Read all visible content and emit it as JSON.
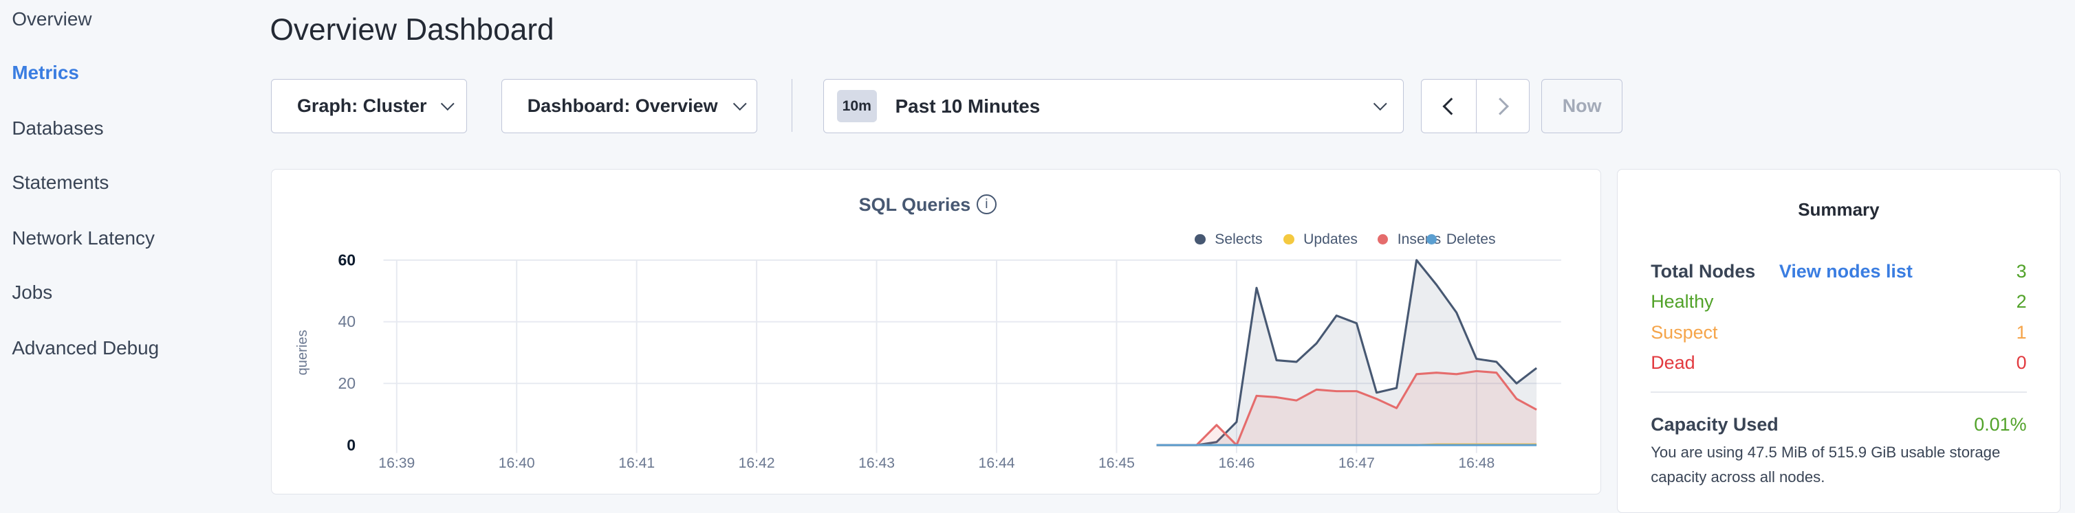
{
  "sidebar": {
    "items": [
      {
        "label": "Overview",
        "active": false
      },
      {
        "label": "Metrics",
        "active": true
      },
      {
        "label": "Databases",
        "active": false
      },
      {
        "label": "Statements",
        "active": false
      },
      {
        "label": "Network Latency",
        "active": false
      },
      {
        "label": "Jobs",
        "active": false
      },
      {
        "label": "Advanced Debug",
        "active": false
      }
    ]
  },
  "header": {
    "title": "Overview Dashboard"
  },
  "toolbar": {
    "graph_select": "Graph: Cluster",
    "dashboard_select": "Dashboard: Overview",
    "time_badge": "10m",
    "time_range": "Past 10 Minutes",
    "now_label": "Now"
  },
  "chart_data": {
    "type": "area",
    "title": "SQL Queries",
    "ylabel": "queries",
    "xlabel": "",
    "ylim": [
      0,
      60
    ],
    "yticks": [
      "0",
      "20",
      "40",
      "60"
    ],
    "xticks": [
      "16:39",
      "16:40",
      "16:41",
      "16:42",
      "16:43",
      "16:44",
      "16:45",
      "16:46",
      "16:47",
      "16:48"
    ],
    "grid": true,
    "legend_placement": "top-right",
    "x": [
      "16:45:20",
      "16:45:30",
      "16:45:40",
      "16:45:50",
      "16:46:00",
      "16:46:10",
      "16:46:20",
      "16:46:30",
      "16:46:40",
      "16:46:50",
      "16:47:00",
      "16:47:10",
      "16:47:20",
      "16:47:30",
      "16:47:40",
      "16:47:50",
      "16:48:00",
      "16:48:10",
      "16:48:20",
      "16:48:30"
    ],
    "series": [
      {
        "name": "Selects",
        "color": "#475872",
        "values": [
          0,
          0,
          0,
          1,
          7.5,
          51,
          27.5,
          27,
          33,
          42,
          39.5,
          17,
          18.5,
          60,
          52,
          43,
          28,
          27,
          20,
          25
        ]
      },
      {
        "name": "Updates",
        "color": "#f4c940",
        "values": [
          0,
          0,
          0,
          0,
          0,
          0,
          0,
          0,
          0,
          0,
          0,
          0,
          0,
          0,
          0.2,
          0.2,
          0.2,
          0.2,
          0.2,
          0.2
        ]
      },
      {
        "name": "Inserts",
        "color": "#e56c6c",
        "values": [
          0,
          0,
          0,
          6.5,
          0,
          16,
          15.5,
          14.5,
          18,
          17.5,
          17.5,
          15,
          12,
          23,
          23.5,
          23,
          24,
          23.5,
          15,
          11.5
        ]
      },
      {
        "name": "Deletes",
        "color": "#5b9fd1",
        "values": [
          0,
          0,
          0,
          0,
          0,
          0,
          0,
          0,
          0,
          0,
          0,
          0,
          0,
          0,
          0,
          0,
          0,
          0,
          0,
          0
        ]
      }
    ]
  },
  "summary": {
    "title": "Summary",
    "total_nodes_label": "Total Nodes",
    "view_nodes_link": "View nodes list",
    "total_nodes": "3",
    "healthy_label": "Healthy",
    "healthy": "2",
    "suspect_label": "Suspect",
    "suspect": "1",
    "dead_label": "Dead",
    "dead": "0",
    "capacity_label": "Capacity Used",
    "capacity_value": "0.01%",
    "capacity_text_1": "You are using 47.5 MiB of 515.9 GiB usable storage",
    "capacity_text_2": "capacity across all nodes."
  },
  "colors": {
    "accent": "#3a7de1",
    "healthy": "#51a229",
    "suspect": "#f5a449",
    "dead": "#e23a3f"
  }
}
